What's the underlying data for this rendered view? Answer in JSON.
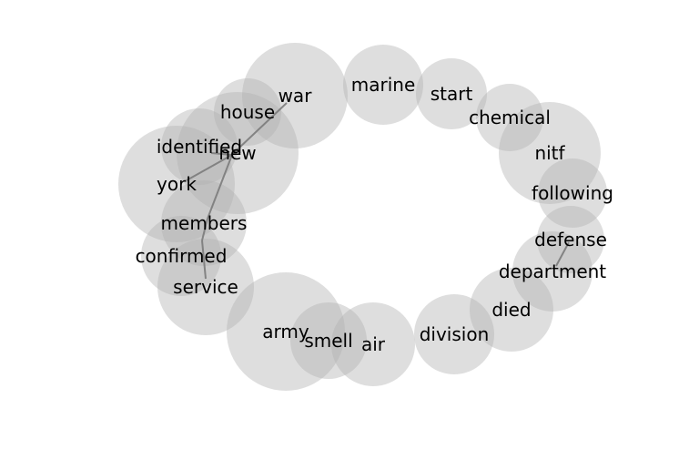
{
  "diagram": {
    "type": "word-cooccurrence-bubble-network",
    "colors": {
      "bubble_fill": "#b0b0b0",
      "edge": "#777777",
      "label": "#000000"
    },
    "nodes": [
      {
        "id": "war",
        "label": "war"
      },
      {
        "id": "marine",
        "label": "marine"
      },
      {
        "id": "start",
        "label": "start"
      },
      {
        "id": "chemical",
        "label": "chemical"
      },
      {
        "id": "house",
        "label": "house"
      },
      {
        "id": "new",
        "label": "new"
      },
      {
        "id": "identified",
        "label": "identified"
      },
      {
        "id": "york",
        "label": "york"
      },
      {
        "id": "nitf",
        "label": "nitf"
      },
      {
        "id": "following",
        "label": "following"
      },
      {
        "id": "members",
        "label": "members"
      },
      {
        "id": "confirmed",
        "label": "confirmed"
      },
      {
        "id": "service",
        "label": "service"
      },
      {
        "id": "defense",
        "label": "defense"
      },
      {
        "id": "department",
        "label": "department"
      },
      {
        "id": "died",
        "label": "died"
      },
      {
        "id": "army",
        "label": "army"
      },
      {
        "id": "smell",
        "label": "smell"
      },
      {
        "id": "air",
        "label": "air"
      },
      {
        "id": "division",
        "label": "division"
      }
    ],
    "edges": [
      [
        "war",
        "new"
      ],
      [
        "house",
        "new"
      ],
      [
        "identified",
        "new"
      ],
      [
        "york",
        "new"
      ],
      [
        "members",
        "new"
      ],
      [
        "members",
        "york"
      ],
      [
        "members",
        "service"
      ],
      [
        "defense",
        "department"
      ]
    ]
  }
}
